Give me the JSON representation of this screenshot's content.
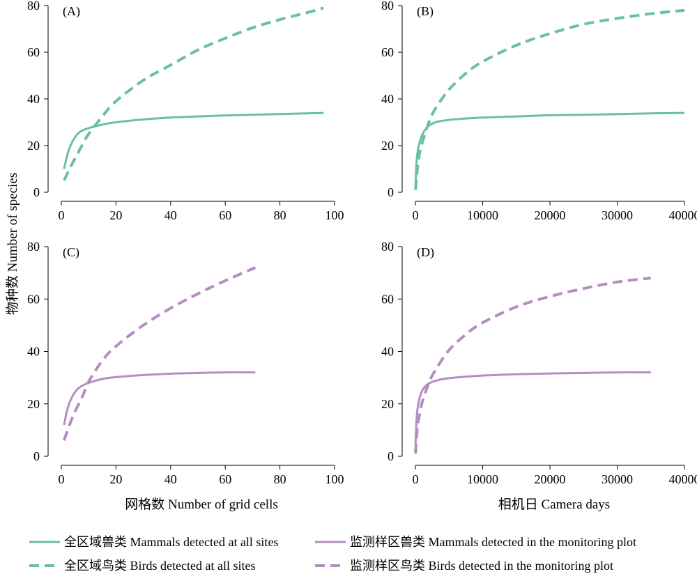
{
  "colors": {
    "teal": "#6bbfa6",
    "purple": "#b48dc3",
    "axis": "#000000"
  },
  "figure": {
    "ylabel": "物种数 Number of species",
    "xlabel_left": "网格数 Number of grid cells",
    "xlabel_right": "相机日 Camera days"
  },
  "legend": [
    {
      "label": "全区域兽类 Mammals detected at all sites",
      "color": "#6bbfa6",
      "dash": "solid"
    },
    {
      "label": "全区域鸟类 Birds detected at all sites",
      "color": "#6bbfa6",
      "dash": "dashed"
    },
    {
      "label": "监测样区兽类 Mammals detected in the monitoring plot",
      "color": "#b48dc3",
      "dash": "solid"
    },
    {
      "label": "监测样区鸟类 Birds detected in the monitoring plot",
      "color": "#b48dc3",
      "dash": "dashed"
    }
  ],
  "chart_data": [
    {
      "type": "line",
      "panel": "(A)",
      "xlim": [
        0,
        100
      ],
      "ylim": [
        0,
        80
      ],
      "xticks": [
        0,
        20,
        40,
        60,
        80,
        100
      ],
      "yticks": [
        0,
        20,
        40,
        60,
        80
      ],
      "series": [
        {
          "name": "全区域兽类 Mammals detected at all sites",
          "color": "#6bbfa6",
          "dash": "solid",
          "x": [
            1,
            2,
            3,
            5,
            7,
            10,
            15,
            20,
            30,
            40,
            50,
            60,
            70,
            80,
            96
          ],
          "y": [
            10,
            15,
            19,
            23.5,
            26,
            27.5,
            29,
            30,
            31.2,
            32,
            32.5,
            32.9,
            33.2,
            33.5,
            34
          ]
        },
        {
          "name": "全区域鸟类 Birds detected at all sites",
          "color": "#6bbfa6",
          "dash": "dashed",
          "x": [
            1,
            3,
            5,
            8,
            10,
            15,
            20,
            30,
            40,
            50,
            60,
            70,
            80,
            90,
            96
          ],
          "y": [
            5,
            10,
            14.5,
            21,
            25,
            32.5,
            39,
            48,
            54.5,
            61,
            66,
            70.5,
            74,
            77,
            79
          ]
        }
      ]
    },
    {
      "type": "line",
      "panel": "(B)",
      "xlim": [
        0,
        40000
      ],
      "ylim": [
        0,
        80
      ],
      "xticks": [
        0,
        10000,
        20000,
        30000,
        40000
      ],
      "yticks": [
        0,
        20,
        40,
        60,
        80
      ],
      "series": [
        {
          "name": "全区域兽类 Mammals detected at all sites",
          "color": "#6bbfa6",
          "dash": "solid",
          "x": [
            10,
            200,
            500,
            1000,
            1500,
            2000,
            3000,
            5000,
            10000,
            15000,
            20000,
            25000,
            30000,
            35000,
            40000
          ],
          "y": [
            3,
            14,
            20,
            24.5,
            27,
            28.5,
            30,
            31,
            32,
            32.5,
            33,
            33.2,
            33.5,
            33.8,
            34
          ]
        },
        {
          "name": "全区域鸟类 Birds detected at all sites",
          "color": "#6bbfa6",
          "dash": "dashed",
          "x": [
            10,
            300,
            700,
            1000,
            2000,
            3000,
            5000,
            7500,
            10000,
            15000,
            20000,
            25000,
            30000,
            35000,
            40000
          ],
          "y": [
            1,
            10,
            18,
            21,
            30,
            36,
            44,
            51,
            56,
            63,
            68,
            72,
            74.5,
            76.5,
            78
          ]
        }
      ]
    },
    {
      "type": "line",
      "panel": "(C)",
      "xlim": [
        0,
        100
      ],
      "ylim": [
        0,
        80
      ],
      "xticks": [
        0,
        20,
        40,
        60,
        80,
        100
      ],
      "yticks": [
        0,
        20,
        40,
        60,
        80
      ],
      "series": [
        {
          "name": "监测样区兽类 Mammals detected in the monitoring plot",
          "color": "#b48dc3",
          "dash": "solid",
          "x": [
            1,
            2,
            3,
            5,
            7,
            10,
            15,
            20,
            30,
            40,
            50,
            60,
            71
          ],
          "y": [
            12,
            17,
            20.5,
            24.5,
            26.5,
            28,
            29.5,
            30.2,
            31,
            31.5,
            31.8,
            32,
            32
          ]
        },
        {
          "name": "监测样区鸟类 Birds detected in the monitoring plot",
          "color": "#b48dc3",
          "dash": "dashed",
          "x": [
            1,
            3,
            5,
            8,
            10,
            15,
            20,
            30,
            40,
            50,
            60,
            71
          ],
          "y": [
            6,
            12,
            17,
            23.5,
            28.5,
            36.5,
            42,
            50,
            56.5,
            62,
            67,
            72
          ]
        }
      ]
    },
    {
      "type": "line",
      "panel": "(D)",
      "xlim": [
        0,
        40000
      ],
      "ylim": [
        0,
        80
      ],
      "xticks": [
        0,
        10000,
        20000,
        30000,
        40000
      ],
      "yticks": [
        0,
        20,
        40,
        60,
        80
      ],
      "series": [
        {
          "name": "监测样区兽类 Mammals detected in the monitoring plot",
          "color": "#b48dc3",
          "dash": "solid",
          "x": [
            10,
            200,
            500,
            1000,
            1500,
            2000,
            3000,
            5000,
            10000,
            15000,
            20000,
            25000,
            30000,
            35000
          ],
          "y": [
            4,
            15,
            21,
            25,
            26.8,
            27.8,
            28.8,
            29.8,
            30.8,
            31.3,
            31.6,
            31.8,
            32,
            32
          ]
        },
        {
          "name": "监测样区鸟类 Birds detected in the monitoring plot",
          "color": "#b48dc3",
          "dash": "dashed",
          "x": [
            10,
            300,
            700,
            1000,
            2000,
            3000,
            5000,
            7500,
            10000,
            15000,
            20000,
            25000,
            30000,
            35000
          ],
          "y": [
            1,
            11,
            17,
            20.5,
            28,
            33,
            40.5,
            46.5,
            51,
            57,
            61,
            64,
            66.5,
            68
          ]
        }
      ]
    }
  ]
}
